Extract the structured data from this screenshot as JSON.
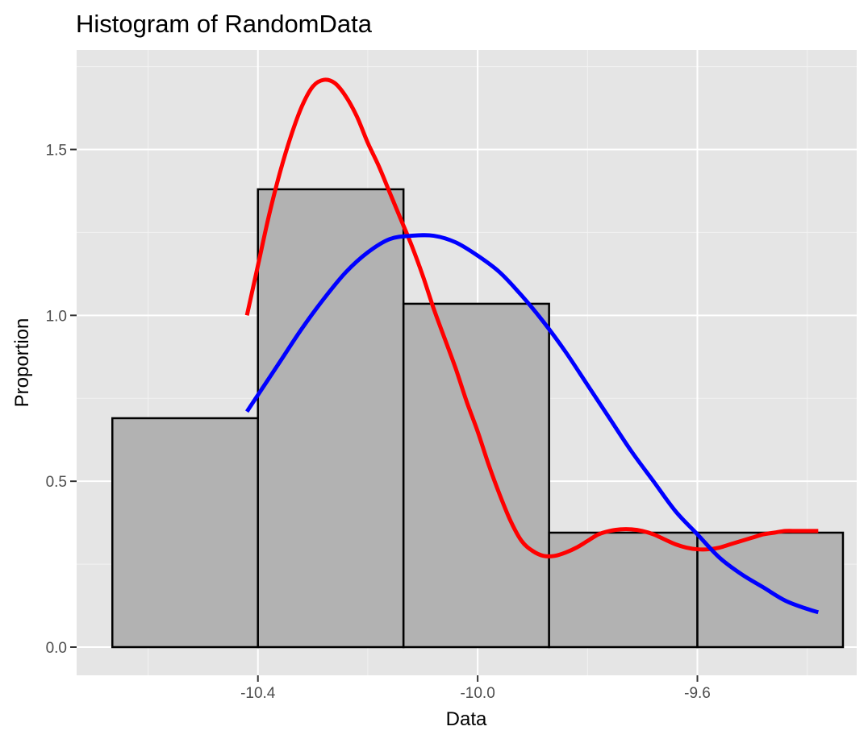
{
  "chart_data": {
    "type": "bar",
    "title": "Histogram of RandomData",
    "xlabel": "Data",
    "ylabel": "Proportion",
    "xlim": [
      -10.73,
      -9.31
    ],
    "ylim": [
      -0.085,
      1.8
    ],
    "x_ticks": [
      {
        "value": -10.4,
        "label": "-10.4"
      },
      {
        "value": -10.0,
        "label": "-10.0"
      },
      {
        "value": -9.6,
        "label": "-9.6"
      }
    ],
    "x_minor_ticks": [
      -10.6,
      -10.2,
      -9.8,
      -9.4
    ],
    "y_ticks": [
      {
        "value": 0.0,
        "label": "0.0"
      },
      {
        "value": 0.5,
        "label": "0.5"
      },
      {
        "value": 1.0,
        "label": "1.0"
      },
      {
        "value": 1.5,
        "label": "1.5"
      }
    ],
    "y_minor_ticks": [
      0.25,
      0.75,
      1.25,
      1.75
    ],
    "grid": true,
    "bars": [
      {
        "x0": -10.665,
        "x1": -10.4,
        "value": 0.69
      },
      {
        "x0": -10.4,
        "x1": -10.135,
        "value": 1.38
      },
      {
        "x0": -10.135,
        "x1": -9.87,
        "value": 1.035
      },
      {
        "x0": -9.87,
        "x1": -9.6,
        "value": 0.345
      },
      {
        "x0": -9.6,
        "x1": -9.335,
        "value": 0.345
      }
    ],
    "bar_fill": "#b2b2b2",
    "bar_stroke": "#000000",
    "series": [
      {
        "kind": "density",
        "color": "#ff0000",
        "x": [
          -10.42,
          -10.4,
          -10.38,
          -10.36,
          -10.34,
          -10.32,
          -10.3,
          -10.28,
          -10.26,
          -10.24,
          -10.22,
          -10.2,
          -10.18,
          -10.16,
          -10.14,
          -10.12,
          -10.1,
          -10.08,
          -10.06,
          -10.04,
          -10.02,
          -10.0,
          -9.98,
          -9.96,
          -9.94,
          -9.92,
          -9.9,
          -9.88,
          -9.86,
          -9.84,
          -9.82,
          -9.8,
          -9.78,
          -9.76,
          -9.74,
          -9.72,
          -9.7,
          -9.68,
          -9.66,
          -9.64,
          -9.62,
          -9.6,
          -9.58,
          -9.56,
          -9.54,
          -9.52,
          -9.5,
          -9.48,
          -9.46,
          -9.44,
          -9.42,
          -9.4,
          -9.38
        ],
        "values": [
          1.0,
          1.15,
          1.3,
          1.43,
          1.54,
          1.63,
          1.69,
          1.71,
          1.7,
          1.66,
          1.6,
          1.52,
          1.45,
          1.37,
          1.29,
          1.21,
          1.12,
          1.02,
          0.93,
          0.84,
          0.74,
          0.65,
          0.55,
          0.46,
          0.38,
          0.32,
          0.29,
          0.275,
          0.275,
          0.285,
          0.3,
          0.32,
          0.34,
          0.35,
          0.355,
          0.355,
          0.35,
          0.34,
          0.325,
          0.31,
          0.3,
          0.295,
          0.295,
          0.3,
          0.31,
          0.32,
          0.33,
          0.34,
          0.345,
          0.35,
          0.35,
          0.35,
          0.35
        ]
      },
      {
        "kind": "normal",
        "color": "#0000ff",
        "x": [
          -10.42,
          -10.4,
          -10.36,
          -10.32,
          -10.28,
          -10.24,
          -10.2,
          -10.16,
          -10.12,
          -10.08,
          -10.04,
          -10.0,
          -9.96,
          -9.92,
          -9.88,
          -9.84,
          -9.8,
          -9.76,
          -9.72,
          -9.68,
          -9.64,
          -9.6,
          -9.56,
          -9.52,
          -9.48,
          -9.44,
          -9.4,
          -9.38
        ],
        "values": [
          0.71,
          0.76,
          0.86,
          0.96,
          1.05,
          1.13,
          1.19,
          1.23,
          1.24,
          1.24,
          1.22,
          1.18,
          1.13,
          1.06,
          0.98,
          0.89,
          0.79,
          0.69,
          0.59,
          0.5,
          0.41,
          0.34,
          0.27,
          0.22,
          0.18,
          0.14,
          0.115,
          0.105
        ]
      }
    ],
    "colors": {
      "panel": "#e5e5e5",
      "grid_major": "#ffffff",
      "grid_minor": "#f2f2f2",
      "tick_text": "#4d4d4d"
    }
  }
}
